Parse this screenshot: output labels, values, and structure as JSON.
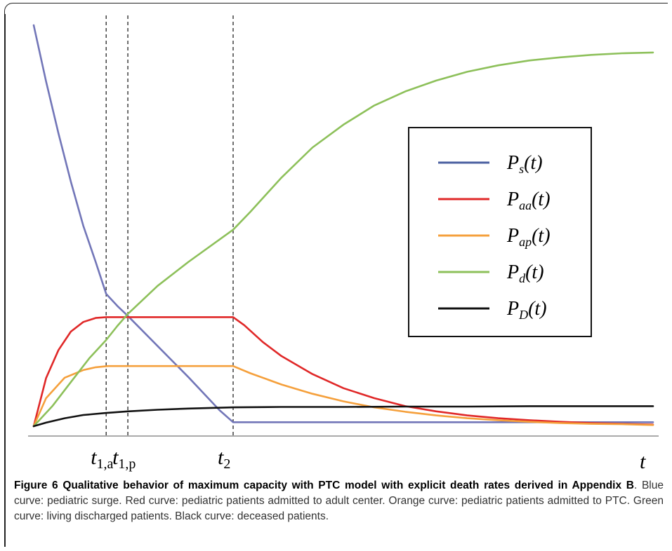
{
  "chart_data": {
    "type": "line",
    "xlabel": "t",
    "ylabel": "",
    "xlim": [
      0,
      1
    ],
    "ylim": [
      0,
      1
    ],
    "grid": false,
    "legend_position": "right",
    "x_ticks": [
      {
        "id": "t1a",
        "label_main": "t",
        "label_sub": "1,a",
        "x": 0.117
      },
      {
        "id": "t1p",
        "label_main": "t",
        "label_sub": "1,p",
        "x": 0.152
      },
      {
        "id": "t2",
        "label_main": "t",
        "label_sub": "2",
        "x": 0.322
      }
    ],
    "series": [
      {
        "key": "s",
        "name_main": "P",
        "name_sub": "s",
        "name_tail": "(t)",
        "color": "#7276b8",
        "legend_color": "#4a5fa0",
        "points": [
          [
            0,
            1.0
          ],
          [
            0.02,
            0.86
          ],
          [
            0.04,
            0.73
          ],
          [
            0.06,
            0.61
          ],
          [
            0.08,
            0.5
          ],
          [
            0.1,
            0.41
          ],
          [
            0.117,
            0.33
          ],
          [
            0.135,
            0.3
          ],
          [
            0.152,
            0.275
          ],
          [
            0.2,
            0.2
          ],
          [
            0.25,
            0.122
          ],
          [
            0.3,
            0.04
          ],
          [
            0.322,
            0.01
          ],
          [
            1.0,
            0.01
          ]
        ]
      },
      {
        "key": "aa",
        "name_main": "P",
        "name_sub": "aa",
        "name_tail": "(t)",
        "color": "#e02828",
        "legend_color": "#e02828",
        "points": [
          [
            0,
            0.0
          ],
          [
            0.02,
            0.12
          ],
          [
            0.04,
            0.19
          ],
          [
            0.06,
            0.236
          ],
          [
            0.08,
            0.26
          ],
          [
            0.1,
            0.27
          ],
          [
            0.117,
            0.272
          ],
          [
            0.322,
            0.272
          ],
          [
            0.34,
            0.252
          ],
          [
            0.37,
            0.21
          ],
          [
            0.4,
            0.175
          ],
          [
            0.45,
            0.13
          ],
          [
            0.5,
            0.095
          ],
          [
            0.55,
            0.07
          ],
          [
            0.6,
            0.05
          ],
          [
            0.65,
            0.037
          ],
          [
            0.7,
            0.027
          ],
          [
            0.75,
            0.02
          ],
          [
            0.8,
            0.015
          ],
          [
            0.85,
            0.011
          ],
          [
            0.9,
            0.008
          ],
          [
            0.95,
            0.006
          ],
          [
            1.0,
            0.004
          ]
        ]
      },
      {
        "key": "ap",
        "name_main": "P",
        "name_sub": "ap",
        "name_tail": "(t)",
        "color": "#f5a03c",
        "legend_color": "#f5a03c",
        "points": [
          [
            0,
            0.0
          ],
          [
            0.02,
            0.07
          ],
          [
            0.05,
            0.121
          ],
          [
            0.08,
            0.14
          ],
          [
            0.1,
            0.147
          ],
          [
            0.12,
            0.15
          ],
          [
            0.152,
            0.15
          ],
          [
            0.322,
            0.15
          ],
          [
            0.35,
            0.132
          ],
          [
            0.4,
            0.104
          ],
          [
            0.45,
            0.081
          ],
          [
            0.5,
            0.062
          ],
          [
            0.55,
            0.047
          ],
          [
            0.6,
            0.036
          ],
          [
            0.65,
            0.027
          ],
          [
            0.7,
            0.02
          ],
          [
            0.75,
            0.015
          ],
          [
            0.8,
            0.011
          ],
          [
            0.85,
            0.008
          ],
          [
            0.9,
            0.006
          ],
          [
            0.95,
            0.005
          ],
          [
            1.0,
            0.003
          ]
        ]
      },
      {
        "key": "d",
        "name_main": "P",
        "name_sub": "d",
        "name_tail": "(t)",
        "color": "#8dc05a",
        "legend_color": "#8dc05a",
        "points": [
          [
            0,
            0.0
          ],
          [
            0.03,
            0.05
          ],
          [
            0.06,
            0.11
          ],
          [
            0.09,
            0.17
          ],
          [
            0.117,
            0.215
          ],
          [
            0.135,
            0.25
          ],
          [
            0.152,
            0.28
          ],
          [
            0.2,
            0.35
          ],
          [
            0.25,
            0.41
          ],
          [
            0.322,
            0.49
          ],
          [
            0.35,
            0.535
          ],
          [
            0.4,
            0.62
          ],
          [
            0.45,
            0.695
          ],
          [
            0.5,
            0.752
          ],
          [
            0.55,
            0.8
          ],
          [
            0.6,
            0.835
          ],
          [
            0.65,
            0.862
          ],
          [
            0.7,
            0.884
          ],
          [
            0.75,
            0.9
          ],
          [
            0.8,
            0.912
          ],
          [
            0.85,
            0.92
          ],
          [
            0.9,
            0.926
          ],
          [
            0.95,
            0.93
          ],
          [
            1.0,
            0.932
          ]
        ]
      },
      {
        "key": "D",
        "name_main": "P",
        "name_sub": "D",
        "name_tail": "(t)",
        "color": "#111111",
        "legend_color": "#111111",
        "points": [
          [
            0,
            0.0
          ],
          [
            0.02,
            0.009
          ],
          [
            0.05,
            0.02
          ],
          [
            0.08,
            0.028
          ],
          [
            0.117,
            0.033
          ],
          [
            0.152,
            0.037
          ],
          [
            0.2,
            0.041
          ],
          [
            0.25,
            0.044
          ],
          [
            0.322,
            0.047
          ],
          [
            0.4,
            0.048
          ],
          [
            0.5,
            0.048
          ],
          [
            0.6,
            0.049
          ],
          [
            0.7,
            0.049
          ],
          [
            0.8,
            0.05
          ],
          [
            0.9,
            0.05
          ],
          [
            1.0,
            0.05
          ]
        ]
      }
    ]
  },
  "caption": {
    "bold": "Figure 6 Qualitative behavior of maximum capacity with PTC model with explicit death rates derived in Appendix B",
    "text": ". Blue curve: pediatric surge. Red curve: pediatric patients admitted to adult center. Orange curve: pediatric patients admitted to PTC. Green curve: living discharged patients. Black curve: deceased patients."
  }
}
